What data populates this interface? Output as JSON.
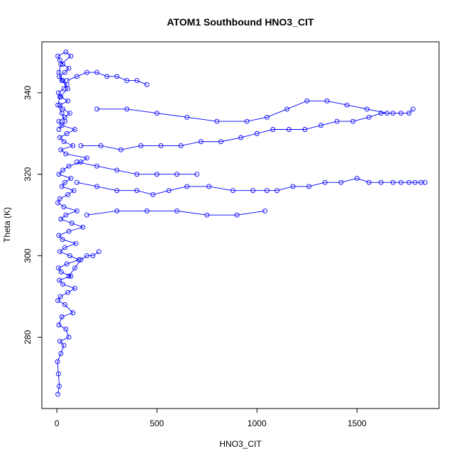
{
  "chart_data": {
    "type": "scatter",
    "title": "ATOM1 Southbound HNO3_CIT",
    "xlabel": "HNO3_CIT",
    "ylabel": "Theta (K)",
    "xlim": [
      -75,
      1910
    ],
    "ylim": [
      262.5,
      352.5
    ],
    "xticks": [
      0,
      500,
      1000,
      1500
    ],
    "yticks": [
      280,
      300,
      320,
      340
    ],
    "grid": false,
    "legend": "none",
    "color": "#0000ff",
    "marker": "open-circle",
    "series": [
      {
        "style": "points-and-lines",
        "note_points": "dense core of observations near x=0 spanning the full theta range; sparse excursions to high HNO3",
        "x": [
          5,
          12,
          8,
          3,
          20,
          35,
          15,
          60,
          45,
          10,
          25,
          80,
          40,
          5,
          18,
          55,
          90,
          30,
          12,
          70,
          22,
          8,
          50,
          110,
          65,
          15,
          40,
          95,
          28,
          10,
          60,
          130,
          75,
          20,
          45,
          100,
          35,
          5,
          15,
          55,
          85,
          25,
          40,
          70,
          10,
          30,
          60,
          120,
          150,
          45,
          20,
          80,
          35,
          15,
          50,
          90,
          25,
          10,
          40,
          65,
          30,
          15,
          55,
          20,
          8,
          35,
          50,
          25,
          12,
          40,
          60,
          30,
          15,
          5,
          45,
          70,
          20,
          10,
          30,
          55,
          15,
          5,
          25,
          40,
          10
        ],
        "y": [
          266,
          268,
          271,
          274,
          276,
          278,
          279,
          280,
          282,
          283,
          285,
          286,
          288,
          289,
          290,
          291,
          292,
          293,
          294,
          295,
          296,
          297,
          298,
          299,
          300,
          301,
          302,
          303,
          304,
          305,
          306,
          307,
          308,
          309,
          310,
          311,
          312,
          313,
          314,
          315,
          316,
          317,
          318,
          319,
          320,
          321,
          322,
          323,
          324,
          325,
          326,
          327,
          328,
          329,
          330,
          331,
          332,
          333,
          334,
          335,
          336,
          337,
          338,
          339,
          340,
          341,
          342,
          343,
          344,
          345,
          346,
          347,
          348,
          349,
          350,
          349,
          347,
          345,
          343,
          341,
          339,
          337,
          335,
          333,
          331
        ]
      },
      {
        "style": "points-and-lines",
        "x": [
          100,
          200,
          300,
          400,
          480,
          560,
          650,
          760,
          880,
          980,
          1050,
          1100,
          1180,
          1260,
          1340,
          1420,
          1500,
          1560,
          1620,
          1680,
          1720,
          1760,
          1790,
          1820,
          1840
        ],
        "y": [
          318,
          317,
          316,
          316,
          315,
          316,
          317,
          317,
          316,
          316,
          316,
          316,
          317,
          317,
          318,
          318,
          319,
          318,
          318,
          318,
          318,
          318,
          318,
          318,
          318
        ]
      },
      {
        "style": "points-and-lines",
        "x": [
          120,
          220,
          320,
          420,
          520,
          620,
          720,
          820,
          920,
          1000,
          1080,
          1160,
          1240,
          1320,
          1400,
          1480,
          1560,
          1620,
          1680,
          1720,
          1760,
          1780
        ],
        "y": [
          327,
          327,
          326,
          327,
          327,
          327,
          328,
          328,
          329,
          330,
          331,
          331,
          331,
          332,
          333,
          333,
          334,
          335,
          335,
          335,
          335,
          336
        ]
      },
      {
        "style": "points-and-lines",
        "x": [
          200,
          350,
          500,
          650,
          800,
          950,
          1050,
          1150,
          1250,
          1350,
          1450,
          1550,
          1650
        ],
        "y": [
          336,
          336,
          335,
          334,
          333,
          333,
          334,
          336,
          338,
          338,
          337,
          336,
          335
        ]
      },
      {
        "style": "points-and-lines",
        "x": [
          100,
          200,
          300,
          400,
          500,
          600,
          700
        ],
        "y": [
          323,
          322,
          321,
          320,
          320,
          320,
          320
        ]
      },
      {
        "style": "points-and-lines",
        "x": [
          150,
          300,
          450,
          600,
          750,
          900,
          1040
        ],
        "y": [
          310,
          311,
          311,
          311,
          310,
          310,
          311
        ]
      },
      {
        "style": "points-and-lines",
        "x": [
          50,
          100,
          150,
          200,
          250,
          300,
          350,
          400,
          450
        ],
        "y": [
          343,
          344,
          345,
          345,
          344,
          344,
          343,
          343,
          342
        ]
      },
      {
        "style": "points-and-lines",
        "x": [
          60,
          90,
          120,
          150,
          180,
          210
        ],
        "y": [
          295,
          297,
          299,
          300,
          300,
          301
        ]
      }
    ]
  }
}
